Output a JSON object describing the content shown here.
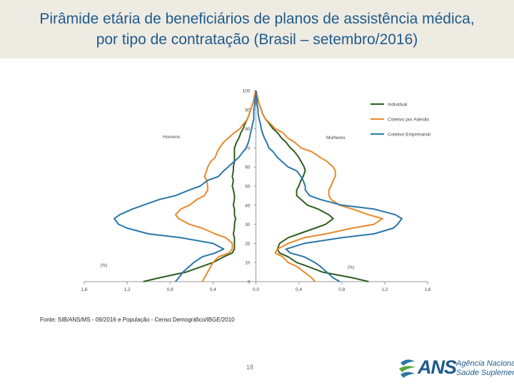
{
  "title": {
    "line1": "Pirâmide etária de beneficiários de planos de assistência médica,",
    "line2": "por tipo de contratação (Brasil – setembro/2016)"
  },
  "source": "Fonte: SIB/ANS/MS - 09/2016 e População - Censo Demográfico/IBGE/2010",
  "page_number": "18",
  "logo": {
    "name": "ANS",
    "line1": "Agência Nacional de",
    "line2": "Saúde Suplementar"
  },
  "colors": {
    "individual": "#2e5d1f",
    "adesao": "#e8892b",
    "empresarial": "#2a76a8",
    "title": "#1f5a8a"
  },
  "chart_data": {
    "type": "line",
    "title": "",
    "side_labels": {
      "left": "Homens",
      "right": "Mulheres"
    },
    "axis_unit_labels": {
      "left": "(%)",
      "right": "(%)"
    },
    "xlim": [
      -1.6,
      1.6
    ],
    "ylim": [
      0,
      100
    ],
    "x_ticks": [
      -1.6,
      -1.2,
      -0.8,
      -0.4,
      0.0,
      0.4,
      0.8,
      1.2,
      1.6
    ],
    "x_tick_labels": [
      "1,6",
      "1,2",
      "0,8",
      "0,4",
      "0,0",
      "0,4",
      "0,8",
      "1,2",
      "1,6"
    ],
    "y_ticks": [
      0,
      10,
      20,
      30,
      40,
      50,
      60,
      70,
      80,
      90,
      100
    ],
    "y_tick_labels": [
      "0",
      "10",
      "20",
      "30",
      "40",
      "50",
      "60",
      "70",
      "80",
      "90",
      "100"
    ],
    "ages": [
      0,
      2,
      5,
      8,
      10,
      13,
      15,
      17,
      20,
      23,
      25,
      28,
      30,
      33,
      35,
      38,
      40,
      43,
      45,
      48,
      50,
      53,
      55,
      58,
      60,
      63,
      65,
      68,
      70,
      73,
      75,
      78,
      80,
      83,
      85,
      88,
      90,
      93,
      95,
      98,
      100
    ],
    "series": [
      {
        "name": "Individual",
        "key": "individual",
        "male": [
          1.05,
          0.9,
          0.65,
          0.5,
          0.4,
          0.3,
          0.22,
          0.2,
          0.2,
          0.2,
          0.21,
          0.2,
          0.2,
          0.19,
          0.2,
          0.2,
          0.21,
          0.2,
          0.2,
          0.21,
          0.22,
          0.21,
          0.22,
          0.21,
          0.21,
          0.2,
          0.2,
          0.2,
          0.2,
          0.18,
          0.16,
          0.14,
          0.12,
          0.1,
          0.08,
          0.06,
          0.05,
          0.03,
          0.02,
          0.01,
          0.0
        ],
        "female": [
          1.05,
          0.9,
          0.62,
          0.48,
          0.38,
          0.3,
          0.22,
          0.2,
          0.22,
          0.3,
          0.4,
          0.55,
          0.65,
          0.72,
          0.68,
          0.58,
          0.48,
          0.42,
          0.38,
          0.38,
          0.4,
          0.42,
          0.44,
          0.46,
          0.45,
          0.42,
          0.4,
          0.36,
          0.32,
          0.28,
          0.24,
          0.2,
          0.16,
          0.12,
          0.09,
          0.06,
          0.05,
          0.03,
          0.02,
          0.01,
          0.0
        ]
      },
      {
        "name": "Coletivo por Adesão",
        "key": "adesao",
        "male": [
          0.5,
          0.48,
          0.45,
          0.42,
          0.4,
          0.35,
          0.25,
          0.22,
          0.22,
          0.28,
          0.38,
          0.5,
          0.62,
          0.72,
          0.75,
          0.7,
          0.62,
          0.55,
          0.48,
          0.45,
          0.45,
          0.46,
          0.48,
          0.46,
          0.45,
          0.42,
          0.38,
          0.36,
          0.34,
          0.3,
          0.26,
          0.2,
          0.15,
          0.11,
          0.08,
          0.06,
          0.05,
          0.03,
          0.02,
          0.01,
          0.0
        ],
        "female": [
          0.55,
          0.52,
          0.45,
          0.38,
          0.3,
          0.25,
          0.18,
          0.2,
          0.3,
          0.45,
          0.65,
          0.9,
          1.1,
          1.18,
          1.05,
          0.9,
          0.78,
          0.7,
          0.68,
          0.68,
          0.7,
          0.72,
          0.74,
          0.74,
          0.72,
          0.66,
          0.6,
          0.52,
          0.42,
          0.36,
          0.3,
          0.25,
          0.18,
          0.13,
          0.09,
          0.06,
          0.05,
          0.03,
          0.02,
          0.01,
          0.0
        ]
      },
      {
        "name": "Coletivo Empresarial",
        "key": "empresarial",
        "male": [
          0.75,
          0.72,
          0.68,
          0.62,
          0.58,
          0.5,
          0.38,
          0.3,
          0.4,
          0.7,
          1.0,
          1.2,
          1.28,
          1.32,
          1.27,
          1.15,
          1.05,
          0.9,
          0.75,
          0.62,
          0.52,
          0.45,
          0.35,
          0.3,
          0.26,
          0.2,
          0.16,
          0.12,
          0.09,
          0.07,
          0.06,
          0.05,
          0.04,
          0.03,
          0.02,
          0.02,
          0.02,
          0.01,
          0.01,
          0.0,
          0.0
        ],
        "female": [
          0.78,
          0.72,
          0.66,
          0.6,
          0.55,
          0.45,
          0.32,
          0.28,
          0.45,
          0.8,
          1.1,
          1.28,
          1.32,
          1.36,
          1.3,
          1.1,
          0.8,
          0.6,
          0.5,
          0.46,
          0.46,
          0.44,
          0.42,
          0.38,
          0.3,
          0.24,
          0.2,
          0.16,
          0.12,
          0.1,
          0.08,
          0.06,
          0.05,
          0.04,
          0.03,
          0.02,
          0.02,
          0.01,
          0.01,
          0.0,
          0.0
        ]
      }
    ],
    "legend": [
      "Individual",
      "Coletivo por Adesão",
      "Coletivo Empresarial"
    ],
    "legend_position": "top-right",
    "grid": false
  }
}
